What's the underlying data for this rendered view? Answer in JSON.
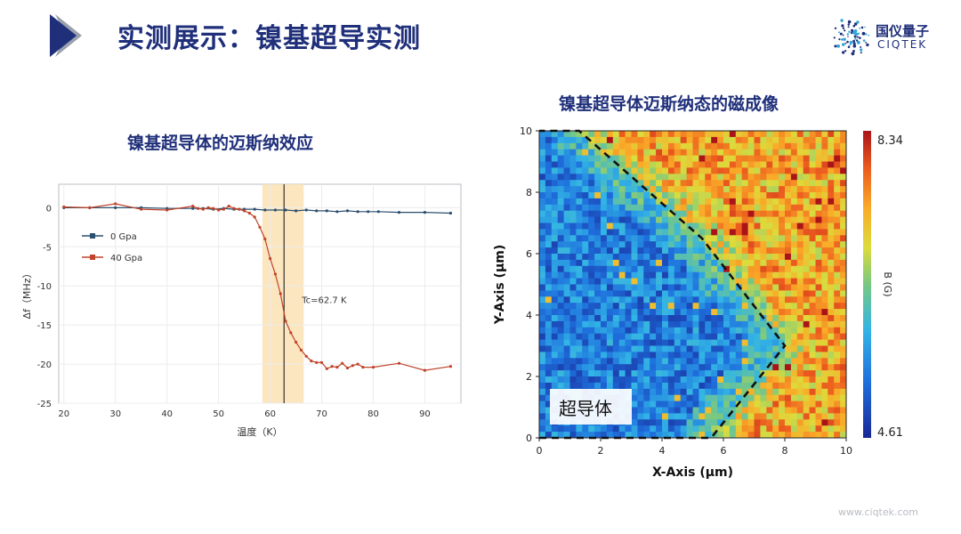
{
  "header": {
    "title": "实测展示：镍基超导实测",
    "logo": {
      "name_cn": "国仪量子",
      "name_en": "CIQTEK",
      "icon": "swirl-dots-logo-icon"
    },
    "accent_color": "#1f2f7a"
  },
  "footer": {
    "url": "www.ciqtek.com"
  },
  "chart_data": [
    {
      "type": "line",
      "title": "镍基超导体的迈斯纳效应",
      "xlabel": "温度（K）",
      "ylabel": "Δf（MHz）",
      "xlim": [
        19,
        97
      ],
      "ylim": [
        -25,
        3
      ],
      "xticks": [
        20,
        30,
        40,
        50,
        60,
        70,
        80,
        90
      ],
      "yticks": [
        0,
        -5,
        -10,
        -15,
        -20,
        -25
      ],
      "grid": true,
      "legend_position": "left",
      "series": [
        {
          "name": "0 Gpa",
          "color": "#2b4f6e",
          "x": [
            20,
            25,
            30,
            35,
            40,
            45,
            47,
            49,
            51,
            53,
            55,
            57,
            59,
            61,
            63,
            65,
            67,
            69,
            71,
            73,
            75,
            77,
            79,
            81,
            85,
            90,
            95
          ],
          "y": [
            0,
            0,
            0,
            0,
            -0.1,
            -0.1,
            -0.1,
            -0.2,
            -0.1,
            -0.2,
            -0.2,
            -0.2,
            -0.3,
            -0.3,
            -0.3,
            -0.4,
            -0.3,
            -0.4,
            -0.4,
            -0.5,
            -0.4,
            -0.5,
            -0.5,
            -0.5,
            -0.6,
            -0.6,
            -0.7
          ]
        },
        {
          "name": "40 Gpa",
          "color": "#c0432a",
          "x": [
            20,
            25,
            30,
            35,
            40,
            45,
            46,
            47,
            48,
            49,
            50,
            51,
            52,
            53,
            54,
            55,
            56,
            57,
            58,
            59,
            60,
            61,
            62,
            63,
            64,
            65,
            66,
            67,
            68,
            69,
            70,
            71,
            72,
            73,
            74,
            75,
            76,
            77,
            78,
            80,
            85,
            90,
            95
          ],
          "y": [
            0.1,
            0,
            0.5,
            -0.2,
            -0.3,
            0.2,
            -0.1,
            -0.2,
            0,
            -0.1,
            -0.3,
            -0.2,
            0.2,
            -0.1,
            -0.2,
            -0.4,
            -0.7,
            -1.2,
            -2.5,
            -4.0,
            -6.5,
            -8.5,
            -11.0,
            -14.5,
            -16.0,
            -17.2,
            -18.2,
            -19.0,
            -19.6,
            -19.8,
            -19.8,
            -20.6,
            -20.3,
            -20.4,
            -19.9,
            -20.5,
            -20.2,
            -20.0,
            -20.4,
            -20.4,
            -19.9,
            -20.8,
            -20.3
          ]
        }
      ],
      "highlight_band": {
        "x_from": 58.5,
        "x_to": 66.5,
        "color": "#fbe2b4"
      },
      "reference_line": {
        "x": 62.7,
        "label": "Tc=62.7 K"
      }
    },
    {
      "type": "heatmap",
      "title": "镍基超导体迈斯纳态的磁成像",
      "xlabel": "X-Axis (μm)",
      "ylabel": "Y-Axis (μm)",
      "xlim": [
        0,
        10
      ],
      "ylim": [
        0,
        10
      ],
      "xticks": [
        0,
        2,
        4,
        6,
        8,
        10
      ],
      "yticks": [
        0,
        2,
        4,
        6,
        8,
        10
      ],
      "colorbar": {
        "label": "B (G)",
        "min": 4.61,
        "max": 8.34,
        "colormap": "jet"
      },
      "superconductor_boundary": {
        "style": "dashed",
        "points": [
          [
            0,
            0
          ],
          [
            5.6,
            0
          ],
          [
            8.0,
            3.0
          ],
          [
            5.3,
            6.5
          ],
          [
            1.3,
            10
          ],
          [
            0,
            10
          ]
        ]
      },
      "region_label": "超导体",
      "grid_size": 50
    }
  ]
}
